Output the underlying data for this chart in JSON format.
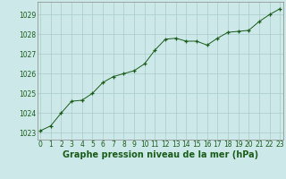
{
  "x": [
    0,
    1,
    2,
    3,
    4,
    5,
    6,
    7,
    8,
    9,
    10,
    11,
    12,
    13,
    14,
    15,
    16,
    17,
    18,
    19,
    20,
    21,
    22,
    23
  ],
  "y": [
    1023.1,
    1023.35,
    1024.0,
    1024.6,
    1024.65,
    1025.0,
    1025.55,
    1025.85,
    1026.0,
    1026.15,
    1026.5,
    1027.2,
    1027.75,
    1027.8,
    1027.65,
    1027.65,
    1027.45,
    1027.8,
    1028.1,
    1028.15,
    1028.2,
    1028.65,
    1029.0,
    1029.3
  ],
  "line_color": "#1a5c1a",
  "marker_color": "#1a5c1a",
  "bg_color": "#cce8e8",
  "grid_color": "#aacccc",
  "xlabel": "Graphe pression niveau de la mer (hPa)",
  "xlabel_color": "#1a5c1a",
  "ylabel_ticks": [
    1023,
    1024,
    1025,
    1026,
    1027,
    1028,
    1029
  ],
  "xlim": [
    -0.3,
    23.3
  ],
  "ylim": [
    1022.65,
    1029.65
  ],
  "tick_color": "#1a5c1a",
  "spine_color": "#888888",
  "tick_fontsize": 5.5,
  "xlabel_fontsize": 7.0,
  "ytick_fontsize": 5.5
}
